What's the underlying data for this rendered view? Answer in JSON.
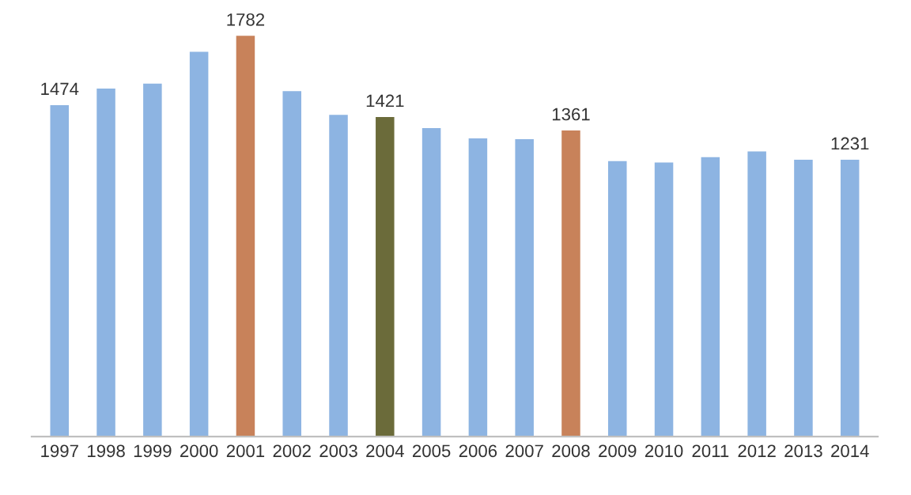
{
  "chart_data": {
    "type": "bar",
    "categories": [
      "1997",
      "1998",
      "1999",
      "2000",
      "2001",
      "2002",
      "2003",
      "2004",
      "2005",
      "2006",
      "2007",
      "2008",
      "2009",
      "2010",
      "2011",
      "2012",
      "2013",
      "2014"
    ],
    "values": [
      1474,
      1548,
      1570,
      1711,
      1782,
      1536,
      1431,
      1421,
      1372,
      1326,
      1323,
      1361,
      1225,
      1219,
      1243,
      1268,
      1231,
      1231
    ],
    "colors": [
      "#8db4e2",
      "#8db4e2",
      "#8db4e2",
      "#8db4e2",
      "#c8825a",
      "#8db4e2",
      "#8db4e2",
      "#6b6b3a",
      "#8db4e2",
      "#8db4e2",
      "#8db4e2",
      "#c8825a",
      "#8db4e2",
      "#8db4e2",
      "#8db4e2",
      "#8db4e2",
      "#8db4e2",
      "#8db4e2"
    ],
    "value_labels": [
      "1474",
      null,
      null,
      null,
      "1782",
      null,
      null,
      "1421",
      null,
      null,
      null,
      "1361",
      null,
      null,
      null,
      null,
      null,
      "1231"
    ],
    "tick_labels": "x",
    "grid": false,
    "legend": false
  }
}
